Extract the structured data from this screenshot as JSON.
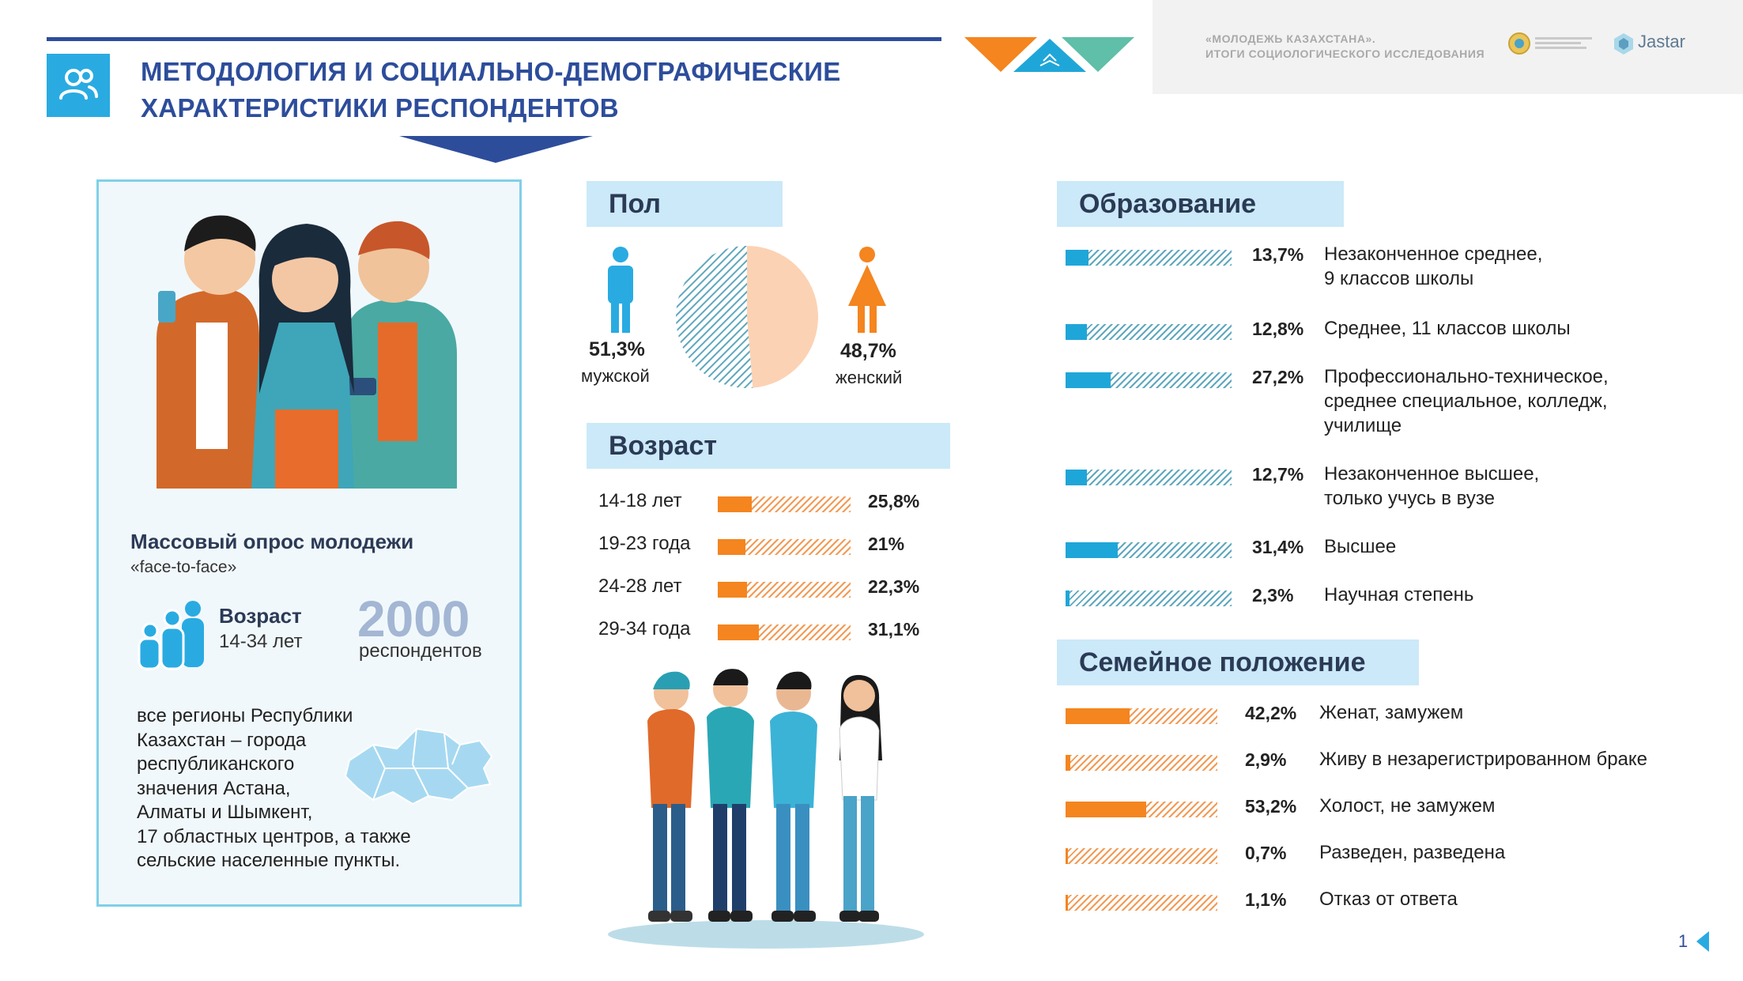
{
  "header": {
    "title_line1": "МЕТОДОЛОГИЯ И СОЦИАЛЬНО-ДЕМОГРАФИЧЕСКИЕ",
    "title_line2": "ХАРАКТЕРИСТИКИ РЕСПОНДЕНТОВ",
    "study_line1": "«МОЛОДЕЖЬ КАЗАХСТАНА».",
    "study_line2": "ИТОГИ СОЦИОЛОГИЧЕСКОГО ИССЛЕДОВАНИЯ",
    "brand": "Jastar"
  },
  "survey": {
    "type": "Массовый опрос молодежи",
    "method": "«face-to-face»",
    "age_label": "Возраст",
    "age_range": "14-34 лет",
    "count": "2000",
    "count_label": "респондентов",
    "regions": [
      "все регионы Республики",
      "Казахстан – города",
      "республиканского",
      "значения Астана,",
      "Алматы и Шымкент,",
      "17 областных центров, а также",
      "сельские населенные пункты."
    ]
  },
  "gender": {
    "heading": "Пол",
    "male_pct": "51,3%",
    "male_label": "мужской",
    "female_pct": "48,7%",
    "female_label": "женский",
    "male_value": 51.3,
    "female_value": 48.7
  },
  "age": {
    "heading": "Возраст",
    "rows": [
      {
        "label": "14-18 лет",
        "pct": "25,8%",
        "value": 25.8
      },
      {
        "label": "19-23 года",
        "pct": "21%",
        "value": 21
      },
      {
        "label": "24-28 лет",
        "pct": "22,3%",
        "value": 22.3
      },
      {
        "label": "29-34 года",
        "pct": "31,1%",
        "value": 31.1
      }
    ]
  },
  "education": {
    "heading": "Образование",
    "rows": [
      {
        "pct": "13,7%",
        "value": 13.7,
        "lines": [
          "Незаконченное среднее,",
          "9 классов школы"
        ]
      },
      {
        "pct": "12,8%",
        "value": 12.8,
        "lines": [
          "Среднее, 11 классов школы"
        ]
      },
      {
        "pct": "27,2%",
        "value": 27.2,
        "lines": [
          "Профессионально-техническое,",
          "среднее специальное, колледж,",
          "училище"
        ]
      },
      {
        "pct": "12,7%",
        "value": 12.7,
        "lines": [
          "Незаконченное высшее,",
          "только учусь в вузе"
        ]
      },
      {
        "pct": "31,4%",
        "value": 31.4,
        "lines": [
          "Высшее"
        ]
      },
      {
        "pct": "2,3%",
        "value": 2.3,
        "lines": [
          "Научная степень"
        ]
      }
    ]
  },
  "family": {
    "heading": "Семейное положение",
    "rows": [
      {
        "pct": "42,2%",
        "value": 42.2,
        "label": "Женат, замужем"
      },
      {
        "pct": "2,9%",
        "value": 2.9,
        "label": "Живу в незарегистрированном браке"
      },
      {
        "pct": "53,2%",
        "value": 53.2,
        "label": "Холост, не замужем"
      },
      {
        "pct": "0,7%",
        "value": 0.7,
        "label": "Разведен, разведена"
      },
      {
        "pct": "1,1%",
        "value": 1.1,
        "label": "Отказ от ответа"
      }
    ]
  },
  "page_number": "1",
  "colors": {
    "navy": "#2d4d9b",
    "blue": "#1fa6d8",
    "orange": "#f4851f",
    "teal": "#5fbfa8",
    "peach": "#fcd2b4"
  }
}
